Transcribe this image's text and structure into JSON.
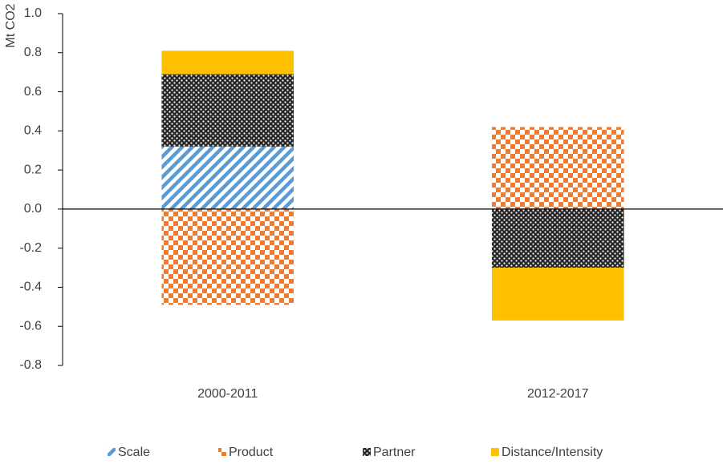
{
  "chart_data": {
    "type": "stacked-bar",
    "y_label": "Mt CO2",
    "categories": [
      "2000-2011",
      "2012-2017"
    ],
    "series": [
      {
        "name": "Scale",
        "color": "#5b9bd5",
        "values": [
          0.32,
          0
        ]
      },
      {
        "name": "Product",
        "color": "#ed7d31",
        "values": [
          -0.49,
          0.42
        ]
      },
      {
        "name": "Partner",
        "color": "#262626",
        "values": [
          0.37,
          -0.3
        ]
      },
      {
        "name": "Distance/Intensity",
        "color": "#ffc000",
        "values": [
          0.12,
          -0.27
        ]
      }
    ],
    "ylim": [
      -0.8,
      1.0
    ],
    "yticks": [
      {
        "value": -0.8,
        "label": "-0.8"
      },
      {
        "value": -0.6,
        "label": "-0.6"
      },
      {
        "value": -0.4,
        "label": "-0.4"
      },
      {
        "value": -0.2,
        "label": "-0.2"
      },
      {
        "value": 0,
        "label": "0.0"
      },
      {
        "value": 0.2,
        "label": "0.2"
      },
      {
        "value": 0.4,
        "label": "0.4"
      },
      {
        "value": 0.6,
        "label": "0.6"
      },
      {
        "value": 0.8,
        "label": "0.8"
      },
      {
        "value": 1.0,
        "label": "1.0"
      }
    ],
    "legend": "bottom"
  }
}
